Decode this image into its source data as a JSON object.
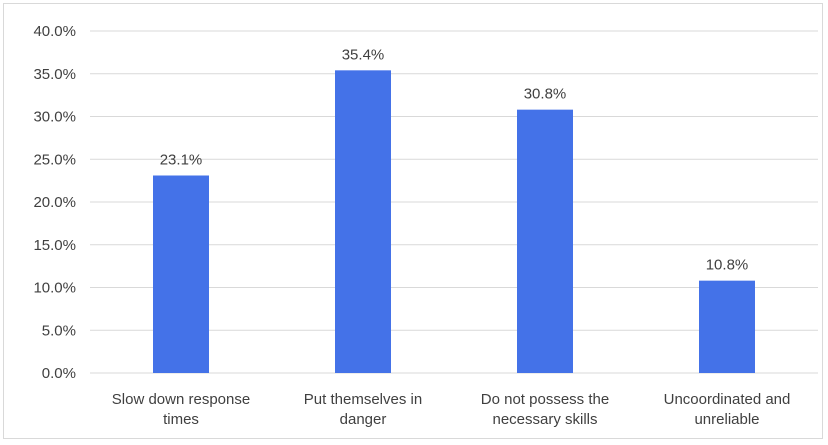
{
  "chart_data": {
    "type": "bar",
    "categories": [
      [
        "Slow down response",
        "times"
      ],
      [
        "Put themselves in",
        "danger"
      ],
      [
        "Do not possess the",
        "necessary skills"
      ],
      [
        "Uncoordinated and",
        "unreliable"
      ]
    ],
    "values": [
      23.1,
      35.4,
      30.8,
      10.8
    ],
    "data_labels": [
      "23.1%",
      "35.4%",
      "30.8%",
      "10.8%"
    ],
    "y_ticks": [
      "0.0%",
      "5.0%",
      "10.0%",
      "15.0%",
      "20.0%",
      "25.0%",
      "30.0%",
      "35.0%",
      "40.0%"
    ],
    "ylim": [
      0,
      40
    ],
    "title": "",
    "xlabel": "",
    "ylabel": "",
    "grid": true,
    "legend": "none",
    "bar_color": "#4472e8"
  }
}
